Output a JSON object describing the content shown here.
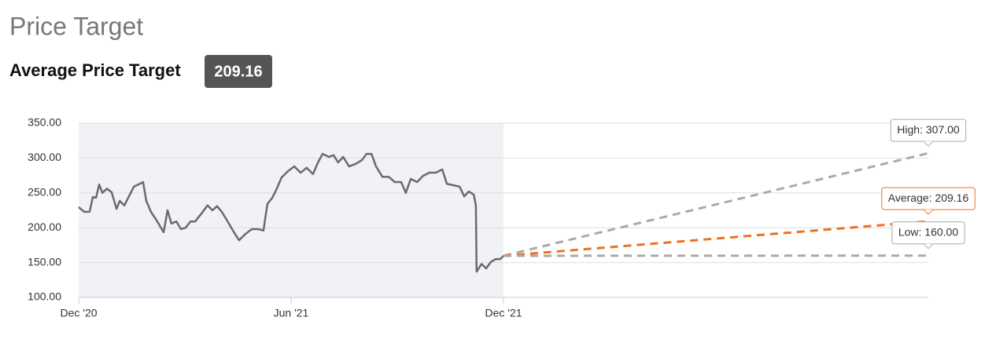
{
  "header": {
    "title": "Price Target",
    "subtitle": "Average Price Target",
    "badge": "209.16"
  },
  "chart_data": {
    "type": "line",
    "xlim": [
      0,
      24
    ],
    "xticks": [
      {
        "value": 0,
        "label": "Dec '20"
      },
      {
        "value": 6,
        "label": "Jun '21"
      },
      {
        "value": 12,
        "label": "Dec '21"
      }
    ],
    "ylim": [
      100,
      350
    ],
    "yticks": [
      {
        "value": 100,
        "label": "100.00"
      },
      {
        "value": 150,
        "label": "150.00"
      },
      {
        "value": 200,
        "label": "200.00"
      },
      {
        "value": 250,
        "label": "250.00"
      },
      {
        "value": 300,
        "label": "300.00"
      },
      {
        "value": 350,
        "label": "350.00"
      }
    ],
    "grid": true,
    "series": [
      {
        "color": "#6b6b6b",
        "x": [
          0,
          0.16,
          0.31,
          0.4,
          0.49,
          0.58,
          0.67,
          0.8,
          0.93,
          1.07,
          1.16,
          1.29,
          1.42,
          1.56,
          1.69,
          1.82,
          1.91,
          2.04,
          2.22,
          2.4,
          2.51,
          2.62,
          2.76,
          2.89,
          3.02,
          3.16,
          3.29,
          3.47,
          3.64,
          3.78,
          3.91,
          4.04,
          4.22,
          4.36,
          4.53,
          4.71,
          4.89,
          5.07,
          5.22,
          5.33,
          5.47,
          5.6,
          5.73,
          5.91,
          6.09,
          6.27,
          6.44,
          6.62,
          6.76,
          6.89,
          7.07,
          7.2,
          7.33,
          7.47,
          7.64,
          7.82,
          8,
          8.13,
          8.27,
          8.4,
          8.58,
          8.76,
          8.93,
          9.11,
          9.24,
          9.38,
          9.56,
          9.73,
          9.91,
          10.09,
          10.27,
          10.4,
          10.58,
          10.76,
          10.89,
          11.02,
          11.16,
          11.22,
          11.24,
          11.38,
          11.51,
          11.64,
          11.78,
          11.91,
          12
        ],
        "values": [
          229.5,
          222.7,
          223,
          244,
          243,
          262,
          250,
          256,
          251,
          227,
          238.5,
          232,
          245,
          259,
          262,
          265.5,
          238.5,
          223,
          209,
          193.5,
          225,
          206,
          209,
          198,
          200,
          209,
          209,
          220.5,
          232,
          225,
          231,
          223,
          208,
          195.7,
          182,
          191,
          198,
          198,
          196,
          234,
          243,
          256.5,
          272,
          281,
          288,
          279,
          286,
          277,
          293.7,
          306,
          301.6,
          304,
          293.7,
          301.6,
          288,
          291.5,
          297,
          306,
          306,
          288,
          273,
          273,
          265.5,
          265.5,
          250,
          270,
          265.5,
          274.5,
          279,
          279,
          283.6,
          263,
          261,
          259,
          245,
          252,
          247.5,
          232,
          137,
          148,
          141.7,
          150.7,
          155,
          155,
          159.7
        ]
      },
      {
        "color": "#aaaaaa",
        "dashed": true,
        "x": [
          12,
          24
        ],
        "values": [
          159.7,
          307
        ],
        "label": "High: 307.00"
      },
      {
        "color": "#f07020",
        "dashed": true,
        "x": [
          12,
          24
        ],
        "values": [
          159.7,
          209.16
        ],
        "label": "Average: 209.16"
      },
      {
        "color": "#aaaaaa",
        "dashed": true,
        "x": [
          12,
          24
        ],
        "values": [
          159.7,
          160
        ],
        "label": "Low: 160.00"
      }
    ]
  }
}
